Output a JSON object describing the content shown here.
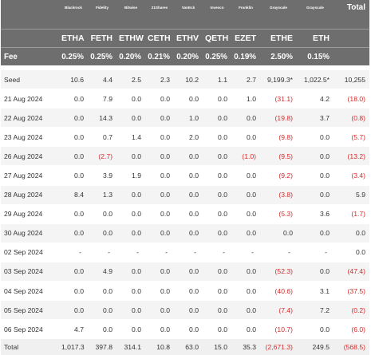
{
  "columns": [
    {
      "issuer": "Blackrock",
      "ticker": "ETHA",
      "fee": "0.25%"
    },
    {
      "issuer": "Fidelity",
      "ticker": "FETH",
      "fee": "0.25%"
    },
    {
      "issuer": "Bitwise",
      "ticker": "ETHW",
      "fee": "0.20%"
    },
    {
      "issuer": "21Shares",
      "ticker": "CETH",
      "fee": "0.21%"
    },
    {
      "issuer": "VanEck",
      "ticker": "ETHV",
      "fee": "0.20%"
    },
    {
      "issuer": "Invesco",
      "ticker": "QETH",
      "fee": "0.25%"
    },
    {
      "issuer": "Franklin",
      "ticker": "EZET",
      "fee": "0.19%"
    },
    {
      "issuer": "Grayscale",
      "ticker": "ETHE",
      "fee": "2.50%"
    },
    {
      "issuer": "Grayscale",
      "ticker": "ETH",
      "fee": "0.15%"
    }
  ],
  "total_header": "Total",
  "fee_label": "Fee",
  "rows": [
    {
      "label": "Seed",
      "values": [
        "10.6",
        "4.4",
        "2.5",
        "2.3",
        "10.2",
        "1.1",
        "2.7",
        "9,199.3*",
        "1,022.5*",
        "10,255"
      ]
    },
    {
      "label": "21 Aug 2024",
      "values": [
        "0.0",
        "7.9",
        "0.0",
        "0.0",
        "0.0",
        "0.0",
        "1.0",
        "(31.1)",
        "4.2",
        "(18.0)"
      ]
    },
    {
      "label": "22 Aug 2024",
      "values": [
        "0.0",
        "14.3",
        "0.0",
        "0.0",
        "1.0",
        "0.0",
        "0.0",
        "(19.8)",
        "3.7",
        "(0.8)"
      ]
    },
    {
      "label": "23 Aug 2024",
      "values": [
        "0.0",
        "0.7",
        "1.4",
        "0.0",
        "2.0",
        "0.0",
        "0.0",
        "(9.8)",
        "0.0",
        "(5.7)"
      ]
    },
    {
      "label": "26 Aug 2024",
      "values": [
        "0.0",
        "(2.7)",
        "0.0",
        "0.0",
        "0.0",
        "0.0",
        "(1.0)",
        "(9.5)",
        "0.0",
        "(13.2)"
      ]
    },
    {
      "label": "27 Aug 2024",
      "values": [
        "0.0",
        "3.9",
        "1.9",
        "0.0",
        "0.0",
        "0.0",
        "0.0",
        "(9.2)",
        "0.0",
        "(3.4)"
      ]
    },
    {
      "label": "28 Aug 2024",
      "values": [
        "8.4",
        "1.3",
        "0.0",
        "0.0",
        "0.0",
        "0.0",
        "0.0",
        "(3.8)",
        "0.0",
        "5.9"
      ]
    },
    {
      "label": "29 Aug 2024",
      "values": [
        "0.0",
        "0.0",
        "0.0",
        "0.0",
        "0.0",
        "0.0",
        "0.0",
        "(5.3)",
        "3.6",
        "(1.7)"
      ]
    },
    {
      "label": "30 Aug 2024",
      "values": [
        "0.0",
        "0.0",
        "0.0",
        "0.0",
        "0.0",
        "0.0",
        "0.0",
        "0.0",
        "0.0",
        "0.0"
      ]
    },
    {
      "label": "02 Sep 2024",
      "values": [
        "-",
        "-",
        "-",
        "-",
        "-",
        "-",
        "-",
        "-",
        "-",
        "0.0"
      ]
    },
    {
      "label": "03 Sep 2024",
      "values": [
        "0.0",
        "4.9",
        "0.0",
        "0.0",
        "0.0",
        "0.0",
        "0.0",
        "(52.3)",
        "0.0",
        "(47.4)"
      ]
    },
    {
      "label": "04 Sep 2024",
      "values": [
        "0.0",
        "0.0",
        "0.0",
        "0.0",
        "0.0",
        "0.0",
        "0.0",
        "(40.6)",
        "3.1",
        "(37.5)"
      ]
    },
    {
      "label": "05 Sep 2024",
      "values": [
        "0.0",
        "0.0",
        "0.0",
        "0.0",
        "0.0",
        "0.0",
        "0.0",
        "(7.4)",
        "7.2",
        "(0.2)"
      ]
    },
    {
      "label": "06 Sep 2024",
      "values": [
        "4.7",
        "0.0",
        "0.0",
        "0.0",
        "0.0",
        "0.0",
        "0.0",
        "(10.7)",
        "0.0",
        "(6.0)"
      ]
    }
  ],
  "total_row": {
    "label": "Total",
    "values": [
      "1,017.3",
      "397.8",
      "314.1",
      "10.8",
      "63.0",
      "15.0",
      "35.3",
      "(2,671.3)",
      "249.5",
      "(568.5)"
    ]
  },
  "colors": {
    "header_bg": "#6e6e6e",
    "header_text": "#ffffff",
    "negative": "#d82a2a",
    "stripe": "#f4f4f4"
  }
}
